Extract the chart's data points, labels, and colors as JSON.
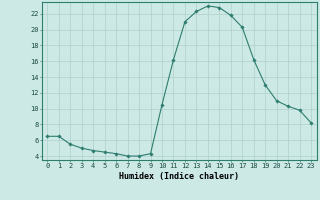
{
  "x": [
    0,
    1,
    2,
    3,
    4,
    5,
    6,
    7,
    8,
    9,
    10,
    11,
    12,
    13,
    14,
    15,
    16,
    17,
    18,
    19,
    20,
    21,
    22,
    23
  ],
  "y": [
    6.5,
    6.5,
    5.5,
    5.0,
    4.7,
    4.5,
    4.3,
    4.0,
    4.0,
    4.3,
    10.5,
    16.2,
    21.0,
    22.3,
    23.0,
    22.8,
    21.8,
    20.3,
    16.2,
    13.0,
    11.0,
    10.3,
    9.8,
    8.2
  ],
  "line_color": "#2e7d6e",
  "marker": "D",
  "marker_size": 1.8,
  "bg_color": "#cce9e6",
  "grid_color": "#b0d0cc",
  "xlabel": "Humidex (Indice chaleur)",
  "xlabel_fontsize": 6,
  "ylabel_ticks": [
    4,
    6,
    8,
    10,
    12,
    14,
    16,
    18,
    20,
    22
  ],
  "xlim": [
    -0.5,
    23.5
  ],
  "ylim": [
    3.5,
    23.5
  ],
  "xtick_labels": [
    "0",
    "1",
    "2",
    "3",
    "4",
    "5",
    "6",
    "7",
    "8",
    "9",
    "10",
    "11",
    "12",
    "13",
    "14",
    "15",
    "16",
    "17",
    "18",
    "19",
    "20",
    "21",
    "22",
    "23"
  ],
  "tick_fontsize": 5.0,
  "linewidth": 0.8
}
